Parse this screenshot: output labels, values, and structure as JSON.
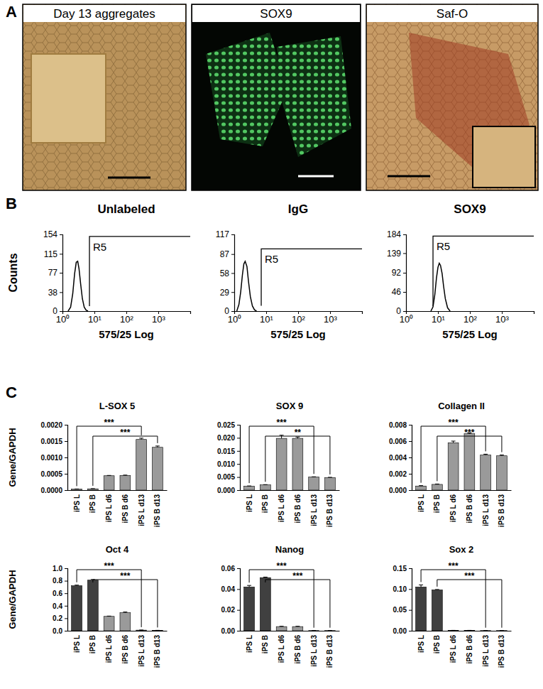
{
  "figure": {
    "panel_labels": [
      "A",
      "B",
      "C"
    ],
    "images": [
      {
        "title": "Day 13 aggregates"
      },
      {
        "title": "SOX9"
      },
      {
        "title": "Saf-O"
      }
    ]
  },
  "chart_data": [
    {
      "type": "line",
      "title": "Unlabeled",
      "xlabel": "575/25 Log",
      "ylabel": "Counts",
      "log": "x",
      "color": "#000000",
      "x": [
        1.5,
        1.8,
        2.1,
        2.4,
        2.7,
        3.0,
        3.3,
        3.7,
        4.2,
        4.8,
        5.5,
        6.3
      ],
      "values": [
        0,
        8,
        35,
        75,
        98,
        100,
        85,
        55,
        25,
        8,
        2,
        0
      ],
      "xlim": [
        1,
        10000
      ],
      "ylim": [
        0,
        154
      ],
      "xticks": [
        {
          "value": 1,
          "label": "10⁰"
        },
        {
          "value": 10,
          "label": "10¹"
        },
        {
          "value": 100,
          "label": "10²"
        },
        {
          "value": 1000,
          "label": "10³"
        }
      ],
      "yticks": [
        0,
        38,
        77,
        115,
        154
      ],
      "gate": {
        "label": "R5",
        "x": 7,
        "top": 150,
        "bottom": 10
      }
    },
    {
      "type": "line",
      "title": "IgG",
      "xlabel": "575/25 Log",
      "log": "x",
      "color": "#000000",
      "x": [
        1.2,
        1.4,
        1.6,
        1.8,
        2.0,
        2.2,
        2.5,
        2.8,
        3.2,
        3.7,
        4.3,
        5.0
      ],
      "values": [
        0,
        10,
        30,
        55,
        72,
        76,
        68,
        45,
        22,
        8,
        2,
        0
      ],
      "xlim": [
        1,
        10000
      ],
      "ylim": [
        0,
        117
      ],
      "xticks": [
        {
          "value": 1,
          "label": "10⁰"
        },
        {
          "value": 10,
          "label": "10¹"
        },
        {
          "value": 100,
          "label": "10²"
        },
        {
          "value": 1000,
          "label": "10³"
        }
      ],
      "yticks": [
        0,
        29,
        58,
        87,
        117
      ],
      "gate": {
        "label": "R5",
        "x": 7,
        "top": 95,
        "bottom": 8
      }
    },
    {
      "type": "line",
      "title": "SOX9",
      "xlabel": "575/25 Log",
      "log": "x",
      "color": "#000000",
      "x": [
        6,
        7,
        8,
        9,
        10,
        11,
        12,
        13.5,
        15,
        17,
        20,
        24
      ],
      "values": [
        0,
        10,
        40,
        80,
        105,
        115,
        110,
        90,
        60,
        30,
        8,
        0
      ],
      "xlim": [
        1,
        10000
      ],
      "ylim": [
        0,
        184
      ],
      "xticks": [
        {
          "value": 1,
          "label": "10⁰"
        },
        {
          "value": 10,
          "label": "10¹"
        },
        {
          "value": 100,
          "label": "10²"
        },
        {
          "value": 1000,
          "label": "10³"
        }
      ],
      "yticks": [
        0,
        46,
        92,
        139,
        184
      ],
      "gate": {
        "label": "R5",
        "x": 7,
        "top": 180,
        "bottom": 12
      }
    },
    {
      "type": "bar",
      "title": "L-SOX 5",
      "ylabel": "Gene/GAPDH",
      "categories": [
        "iPS L",
        "iPS B",
        "iPS L d6",
        "iPS B d6",
        "iPS L d13",
        "iPS B d13"
      ],
      "values": [
        3e-05,
        4e-05,
        0.00044,
        0.00045,
        0.00155,
        0.00131
      ],
      "errors": [
        5e-06,
        5e-06,
        1e-05,
        1e-05,
        4e-05,
        4e-05
      ],
      "colors": [
        "#9a9a9a",
        "#9a9a9a",
        "#9a9a9a",
        "#9a9a9a",
        "#9a9a9a",
        "#9a9a9a"
      ],
      "ylim": [
        0,
        0.002
      ],
      "yticks": [
        {
          "value": 0,
          "label": "0.0000"
        },
        0.0005,
        {
          "value": 0.001,
          "label": "0.0010"
        },
        0.0015,
        {
          "value": 0.002,
          "label": "0.0020"
        }
      ],
      "significance": [
        {
          "from": 0,
          "to": 4,
          "label": "***"
        },
        {
          "from": 1,
          "to": 5,
          "label": "***"
        }
      ]
    },
    {
      "type": "bar",
      "title": "SOX 9",
      "categories": [
        "iPS L",
        "iPS B",
        "iPS L d6",
        "iPS B d6",
        "iPS L d13",
        "iPS B d13"
      ],
      "values": [
        0.0015,
        0.002,
        0.0198,
        0.0198,
        0.005,
        0.0048
      ],
      "errors": [
        0.0001,
        0.0001,
        0.0012,
        0.0005,
        0.0001,
        0.0001
      ],
      "colors": [
        "#9a9a9a",
        "#9a9a9a",
        "#9a9a9a",
        "#9a9a9a",
        "#9a9a9a",
        "#9a9a9a"
      ],
      "ylim": [
        0,
        0.025
      ],
      "yticks": [
        {
          "value": 0,
          "label": "0.000"
        },
        0.005,
        {
          "value": 0.01,
          "label": "0.010"
        },
        0.015,
        {
          "value": 0.02,
          "label": "0.020"
        },
        0.025
      ],
      "significance": [
        {
          "from": 0,
          "to": 4,
          "label": "***"
        },
        {
          "from": 1,
          "to": 5,
          "label": "**"
        }
      ]
    },
    {
      "type": "bar",
      "title": "Collagen II",
      "categories": [
        "iPS L",
        "iPS B",
        "iPS L d6",
        "iPS B d6",
        "iPS L d13",
        "iPS B d13"
      ],
      "values": [
        0.0005,
        0.0007,
        0.0058,
        0.0069,
        0.0043,
        0.0042
      ],
      "errors": [
        5e-05,
        5e-05,
        0.0002,
        0.0001,
        0.0001,
        0.0001
      ],
      "colors": [
        "#9a9a9a",
        "#9a9a9a",
        "#9a9a9a",
        "#9a9a9a",
        "#9a9a9a",
        "#9a9a9a"
      ],
      "ylim": [
        0,
        0.008
      ],
      "yticks": [
        {
          "value": 0,
          "label": "0.000"
        },
        0.002,
        0.004,
        0.006,
        0.008
      ],
      "significance": [
        {
          "from": 0,
          "to": 4,
          "label": "***"
        },
        {
          "from": 1,
          "to": 5,
          "label": "***"
        }
      ]
    },
    {
      "type": "bar",
      "title": "Oct 4",
      "ylabel": "Gene/GAPDH",
      "categories": [
        "iPS L",
        "iPS B",
        "iPS L d6",
        "iPS B d6",
        "iPS L d13",
        "iPS B d13"
      ],
      "values": [
        0.72,
        0.81,
        0.23,
        0.29,
        0.01,
        0.005
      ],
      "errors": [
        0.01,
        0.01,
        0.005,
        0.01,
        0.002,
        0.002
      ],
      "colors": [
        "#404040",
        "#404040",
        "#9a9a9a",
        "#9a9a9a",
        "#9a9a9a",
        "#9a9a9a"
      ],
      "ylim": [
        0,
        1
      ],
      "yticks": [
        {
          "value": 0,
          "label": "0.0"
        },
        0.2,
        0.4,
        0.6,
        0.8,
        {
          "value": 1,
          "label": "1.0"
        }
      ],
      "significance": [
        {
          "from": 0,
          "to": 4,
          "label": "***"
        },
        {
          "from": 1,
          "to": 5,
          "label": "***"
        }
      ]
    },
    {
      "type": "bar",
      "title": "Nanog",
      "categories": [
        "iPS L",
        "iPS B",
        "iPS L d6",
        "iPS B d6",
        "iPS L d13",
        "iPS B d13"
      ],
      "values": [
        0.042,
        0.051,
        0.004,
        0.004,
        0.0002,
        0.0002
      ],
      "errors": [
        0.0015,
        0.0005,
        0.0003,
        0.0003,
        0,
        0
      ],
      "colors": [
        "#404040",
        "#404040",
        "#9a9a9a",
        "#9a9a9a",
        "#9a9a9a",
        "#9a9a9a"
      ],
      "ylim": [
        0,
        0.06
      ],
      "yticks": [
        {
          "value": 0,
          "label": "0.00"
        },
        0.02,
        0.04,
        0.06
      ],
      "significance": [
        {
          "from": 0,
          "to": 4,
          "label": "***"
        },
        {
          "from": 1,
          "to": 5,
          "label": "***"
        }
      ]
    },
    {
      "type": "bar",
      "title": "Sox 2",
      "categories": [
        "iPS L",
        "iPS B",
        "iPS L d6",
        "iPS B d6",
        "iPS L d13",
        "iPS B d13"
      ],
      "values": [
        0.105,
        0.098,
        0.001,
        0.001,
        0.0005,
        0.0005
      ],
      "errors": [
        0.005,
        0.001,
        0,
        0,
        0,
        0
      ],
      "colors": [
        "#404040",
        "#404040",
        "#9a9a9a",
        "#9a9a9a",
        "#9a9a9a",
        "#9a9a9a"
      ],
      "ylim": [
        0,
        0.15
      ],
      "yticks": [
        {
          "value": 0,
          "label": "0.00"
        },
        0.05,
        {
          "value": 0.1,
          "label": "0.10"
        },
        0.15
      ],
      "significance": [
        {
          "from": 0,
          "to": 4,
          "label": "***"
        },
        {
          "from": 1,
          "to": 5,
          "label": "***"
        }
      ]
    }
  ]
}
